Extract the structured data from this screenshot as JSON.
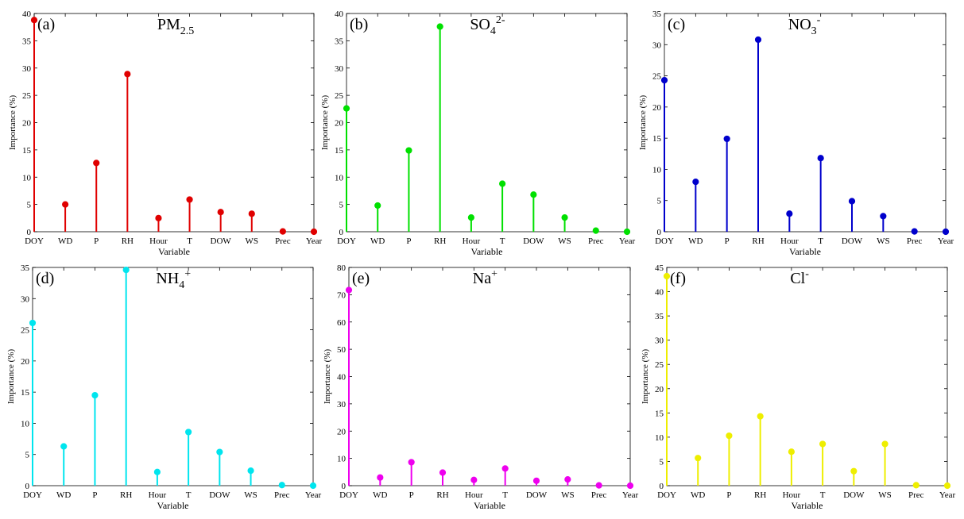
{
  "chart_data": [
    {
      "type": "stem",
      "panel": "(a)",
      "title_main": "PM",
      "title_sub": "2.5",
      "title_sup": "",
      "color": "#e00000",
      "xlabel": "Variable",
      "ylabel": "Importance (%)",
      "ylim": [
        0,
        40
      ],
      "yticks": [
        0,
        5,
        10,
        15,
        20,
        25,
        30,
        35,
        40
      ],
      "categories": [
        "DOY",
        "WD",
        "P",
        "RH",
        "Hour",
        "T",
        "DOW",
        "WS",
        "Prec",
        "Year"
      ],
      "values": [
        38.8,
        5.0,
        12.6,
        28.9,
        2.5,
        5.9,
        3.6,
        3.3,
        0.05,
        0.0
      ]
    },
    {
      "type": "stem",
      "panel": "(b)",
      "title_main": "SO",
      "title_sub": "4",
      "title_sup": "2-",
      "color": "#00e000",
      "xlabel": "Variable",
      "ylabel": "Importance (%)",
      "ylim": [
        0,
        40
      ],
      "yticks": [
        0,
        5,
        10,
        15,
        20,
        25,
        30,
        35,
        40
      ],
      "categories": [
        "DOY",
        "WD",
        "P",
        "RH",
        "Hour",
        "T",
        "DOW",
        "WS",
        "Prec",
        "Year"
      ],
      "values": [
        22.6,
        4.8,
        14.9,
        37.6,
        2.6,
        8.8,
        6.8,
        2.6,
        0.2,
        0.0
      ]
    },
    {
      "type": "stem",
      "panel": "(c)",
      "title_main": "NO",
      "title_sub": "3",
      "title_sup": "-",
      "color": "#0000cc",
      "xlabel": "Variable",
      "ylabel": "Importance (%)",
      "ylim": [
        0,
        35
      ],
      "yticks": [
        0,
        5,
        10,
        15,
        20,
        25,
        30,
        35
      ],
      "categories": [
        "DOY",
        "WD",
        "P",
        "RH",
        "Hour",
        "T",
        "DOW",
        "WS",
        "Prec",
        "Year"
      ],
      "values": [
        24.3,
        8.0,
        14.9,
        30.8,
        2.9,
        11.8,
        4.9,
        2.5,
        0.05,
        0.0
      ]
    },
    {
      "type": "stem",
      "panel": "(d)",
      "title_main": "NH",
      "title_sub": "4",
      "title_sup": "+",
      "color": "#00e5ee",
      "xlabel": "Variable",
      "ylabel": "Importance (%)",
      "ylim": [
        0,
        35
      ],
      "yticks": [
        0,
        5,
        10,
        15,
        20,
        25,
        30,
        35
      ],
      "categories": [
        "DOY",
        "WD",
        "P",
        "RH",
        "Hour",
        "T",
        "DOW",
        "WS",
        "Prec",
        "Year"
      ],
      "values": [
        26.1,
        6.3,
        14.5,
        34.6,
        2.2,
        8.6,
        5.4,
        2.4,
        0.1,
        0.0
      ]
    },
    {
      "type": "stem",
      "panel": "(e)",
      "title_main": "Na",
      "title_sub": "",
      "title_sup": "+",
      "color": "#ee00ee",
      "xlabel": "Variable",
      "ylabel": "Importance (%)",
      "ylim": [
        0,
        80
      ],
      "yticks": [
        0,
        10,
        20,
        30,
        40,
        50,
        60,
        70,
        80
      ],
      "categories": [
        "DOY",
        "WD",
        "P",
        "RH",
        "Hour",
        "T",
        "DOW",
        "WS",
        "Prec",
        "Year"
      ],
      "values": [
        71.7,
        3.0,
        8.6,
        4.8,
        2.1,
        6.3,
        1.8,
        2.3,
        0.1,
        0.0
      ]
    },
    {
      "type": "stem",
      "panel": "(f)",
      "title_main": "Cl",
      "title_sub": "",
      "title_sup": "-",
      "color": "#eeee00",
      "xlabel": "Variable",
      "ylabel": "Importance (%)",
      "ylim": [
        0,
        45
      ],
      "yticks": [
        0,
        5,
        10,
        15,
        20,
        25,
        30,
        35,
        40,
        45
      ],
      "categories": [
        "DOY",
        "WD",
        "P",
        "RH",
        "Hour",
        "T",
        "DOW",
        "WS",
        "Prec",
        "Year"
      ],
      "values": [
        43.2,
        5.7,
        10.3,
        14.3,
        7.0,
        8.6,
        3.0,
        8.6,
        0.1,
        0.0
      ]
    }
  ]
}
